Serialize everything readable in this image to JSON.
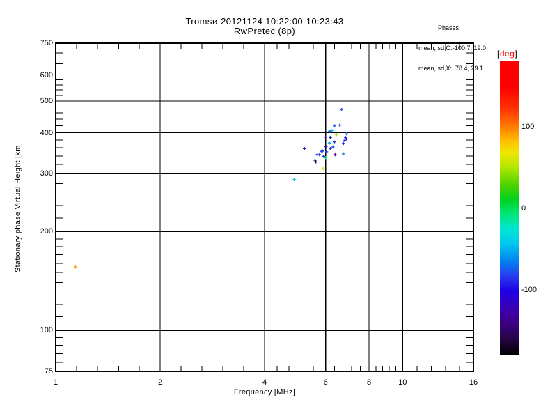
{
  "chart_data": {
    "type": "scatter",
    "title": "Tromsø 20121124 10:22:00-10:23:43",
    "subtitle": "RwPretec (8p)",
    "xlabel": "Frequency [MHz]",
    "ylabel": "Stationary phase Virtual Height [km]",
    "xscale": "log",
    "yscale": "log",
    "xlim": [
      1,
      16
    ],
    "ylim": [
      75,
      750
    ],
    "grid": true,
    "x_ticks": [
      {
        "value": 1,
        "label": "1"
      },
      {
        "value": 2,
        "label": "2"
      },
      {
        "value": 4,
        "label": "4"
      },
      {
        "value": 6,
        "label": "6"
      },
      {
        "value": 8,
        "label": "8"
      },
      {
        "value": 10,
        "label": "10"
      },
      {
        "value": 16,
        "label": "16"
      }
    ],
    "y_ticks": [
      {
        "value": 75,
        "label": "75"
      },
      {
        "value": 100,
        "label": "100"
      },
      {
        "value": 200,
        "label": "200"
      },
      {
        "value": 300,
        "label": "300"
      },
      {
        "value": 400,
        "label": "400"
      },
      {
        "value": 500,
        "label": "500"
      },
      {
        "value": 600,
        "label": "600"
      },
      {
        "value": 750,
        "label": "750"
      }
    ],
    "x_gridlines": [
      2,
      4,
      6,
      8,
      10
    ],
    "y_gridlines": [
      100,
      200,
      300,
      400,
      500,
      600
    ],
    "x_minor_ticks": [
      1.15,
      1.32,
      1.52,
      1.74,
      2.3,
      2.64,
      3.03,
      3.48,
      4.35,
      4.7,
      5.1,
      5.53,
      6.36,
      6.73,
      7.13,
      7.55,
      8.37,
      8.75,
      9.15,
      9.56,
      11,
      12.1,
      13.3,
      14.6
    ],
    "y_minor_ticks": [
      80,
      85,
      90,
      95,
      110,
      120,
      130,
      140,
      150,
      160,
      170,
      180,
      190,
      220,
      240,
      260,
      280,
      320,
      340,
      360,
      380,
      420,
      440,
      460,
      480,
      520,
      540,
      560,
      580,
      650,
      700
    ],
    "points": [
      {
        "freq_mhz": 1.14,
        "height_km": 156,
        "phase_deg": 110,
        "color": "#ffa000"
      },
      {
        "freq_mhz": 4.87,
        "height_km": 288,
        "phase_deg": -45,
        "color": "#00c8f0"
      },
      {
        "freq_mhz": 5.9,
        "height_km": 311,
        "phase_deg": 75,
        "color": "#e8e800"
      },
      {
        "freq_mhz": 5.21,
        "height_km": 358,
        "phase_deg": -140,
        "color": "#4600b4"
      },
      {
        "freq_mhz": 5.59,
        "height_km": 330,
        "phase_deg": -125,
        "color": "#2a14a0"
      },
      {
        "freq_mhz": 5.62,
        "height_km": 326,
        "phase_deg": -160,
        "color": "#28144b"
      },
      {
        "freq_mhz": 5.67,
        "height_km": 343,
        "phase_deg": -100,
        "color": "#2334e0"
      },
      {
        "freq_mhz": 5.76,
        "height_km": 343,
        "phase_deg": -100,
        "color": "#2334e0"
      },
      {
        "freq_mhz": 5.84,
        "height_km": 351,
        "phase_deg": -90,
        "color": "#2a52e8"
      },
      {
        "freq_mhz": 5.87,
        "height_km": 352,
        "phase_deg": -100,
        "color": "#2334e0"
      },
      {
        "freq_mhz": 5.92,
        "height_km": 339,
        "phase_deg": -100,
        "color": "#2334e0"
      },
      {
        "freq_mhz": 6.0,
        "height_km": 336,
        "phase_deg": 0,
        "color": "#00c850"
      },
      {
        "freq_mhz": 6.04,
        "height_km": 350,
        "phase_deg": -90,
        "color": "#2a52e8"
      },
      {
        "freq_mhz": 6.01,
        "height_km": 363,
        "phase_deg": -125,
        "color": "#201e9a"
      },
      {
        "freq_mhz": 6.15,
        "height_km": 372,
        "phase_deg": -55,
        "color": "#00b4e6"
      },
      {
        "freq_mhz": 6.19,
        "height_km": 358,
        "phase_deg": -100,
        "color": "#2334e0"
      },
      {
        "freq_mhz": 6.3,
        "height_km": 362,
        "phase_deg": -90,
        "color": "#2a52e8"
      },
      {
        "freq_mhz": 6.35,
        "height_km": 375,
        "phase_deg": -100,
        "color": "#2334e0"
      },
      {
        "freq_mhz": 6.39,
        "height_km": 343,
        "phase_deg": -145,
        "color": "#5a00b4"
      },
      {
        "freq_mhz": 6.75,
        "height_km": 345,
        "phase_deg": -75,
        "color": "#2a8cf0"
      },
      {
        "freq_mhz": 6.75,
        "height_km": 371,
        "phase_deg": -100,
        "color": "#2334e0"
      },
      {
        "freq_mhz": 6.16,
        "height_km": 404,
        "phase_deg": -90,
        "color": "#2a52e8"
      },
      {
        "freq_mhz": 6.25,
        "height_km": 406,
        "phase_deg": -55,
        "color": "#00b4e6"
      },
      {
        "freq_mhz": 6.44,
        "height_km": 395,
        "phase_deg": 40,
        "color": "#a0e000"
      },
      {
        "freq_mhz": 6.89,
        "height_km": 397,
        "phase_deg": -75,
        "color": "#2a8cf0"
      },
      {
        "freq_mhz": 6.19,
        "height_km": 387,
        "phase_deg": -125,
        "color": "#201e9a"
      },
      {
        "freq_mhz": 6.0,
        "height_km": 388,
        "phase_deg": -120,
        "color": "#2a14a0"
      },
      {
        "freq_mhz": 6.84,
        "height_km": 387,
        "phase_deg": -100,
        "color": "#2334e0"
      },
      {
        "freq_mhz": 6.88,
        "height_km": 383,
        "phase_deg": -110,
        "color": "#3c2ae0"
      },
      {
        "freq_mhz": 6.81,
        "height_km": 379,
        "phase_deg": -100,
        "color": "#2334e0"
      },
      {
        "freq_mhz": 6.36,
        "height_km": 420,
        "phase_deg": -90,
        "color": "#2a52e8"
      },
      {
        "freq_mhz": 6.59,
        "height_km": 422,
        "phase_deg": -90,
        "color": "#2a52e8"
      },
      {
        "freq_mhz": 6.67,
        "height_km": 471,
        "phase_deg": -90,
        "color": "#2a52e8"
      }
    ],
    "annotation": {
      "lines": [
        "Phases",
        "mean, sd,O:-100.7, 19.0",
        "mean, sd,X:  78.4, 29.1"
      ],
      "mean_O": -100.7,
      "sd_O": 19.0,
      "mean_X": 78.4,
      "sd_X": 29.1
    },
    "colorbar": {
      "bracket_left": "[",
      "unit": "deg",
      "bracket_right": "]",
      "unit_color": "#ff0000",
      "range": [
        -180,
        180
      ],
      "ticks": [
        {
          "value": 100,
          "label": "100"
        },
        {
          "value": 0,
          "label": "0"
        },
        {
          "value": -100,
          "label": "-100"
        }
      ],
      "gradient": [
        {
          "pos": 0,
          "color": "#ff0000"
        },
        {
          "pos": 9,
          "color": "#ff0000"
        },
        {
          "pos": 16,
          "color": "#ff3200"
        },
        {
          "pos": 22,
          "color": "#ff7800"
        },
        {
          "pos": 27,
          "color": "#ffbe00"
        },
        {
          "pos": 31,
          "color": "#f0e600"
        },
        {
          "pos": 36,
          "color": "#b4e600"
        },
        {
          "pos": 42,
          "color": "#50d200"
        },
        {
          "pos": 47,
          "color": "#00d21e"
        },
        {
          "pos": 52,
          "color": "#00e678"
        },
        {
          "pos": 57,
          "color": "#00e6d2"
        },
        {
          "pos": 62,
          "color": "#00c8f0"
        },
        {
          "pos": 68,
          "color": "#0082f0"
        },
        {
          "pos": 73,
          "color": "#283cf0"
        },
        {
          "pos": 78,
          "color": "#1e00e6"
        },
        {
          "pos": 84,
          "color": "#3c00b4"
        },
        {
          "pos": 89,
          "color": "#3c0082"
        },
        {
          "pos": 94,
          "color": "#28054b"
        },
        {
          "pos": 100,
          "color": "#000000"
        }
      ]
    }
  }
}
